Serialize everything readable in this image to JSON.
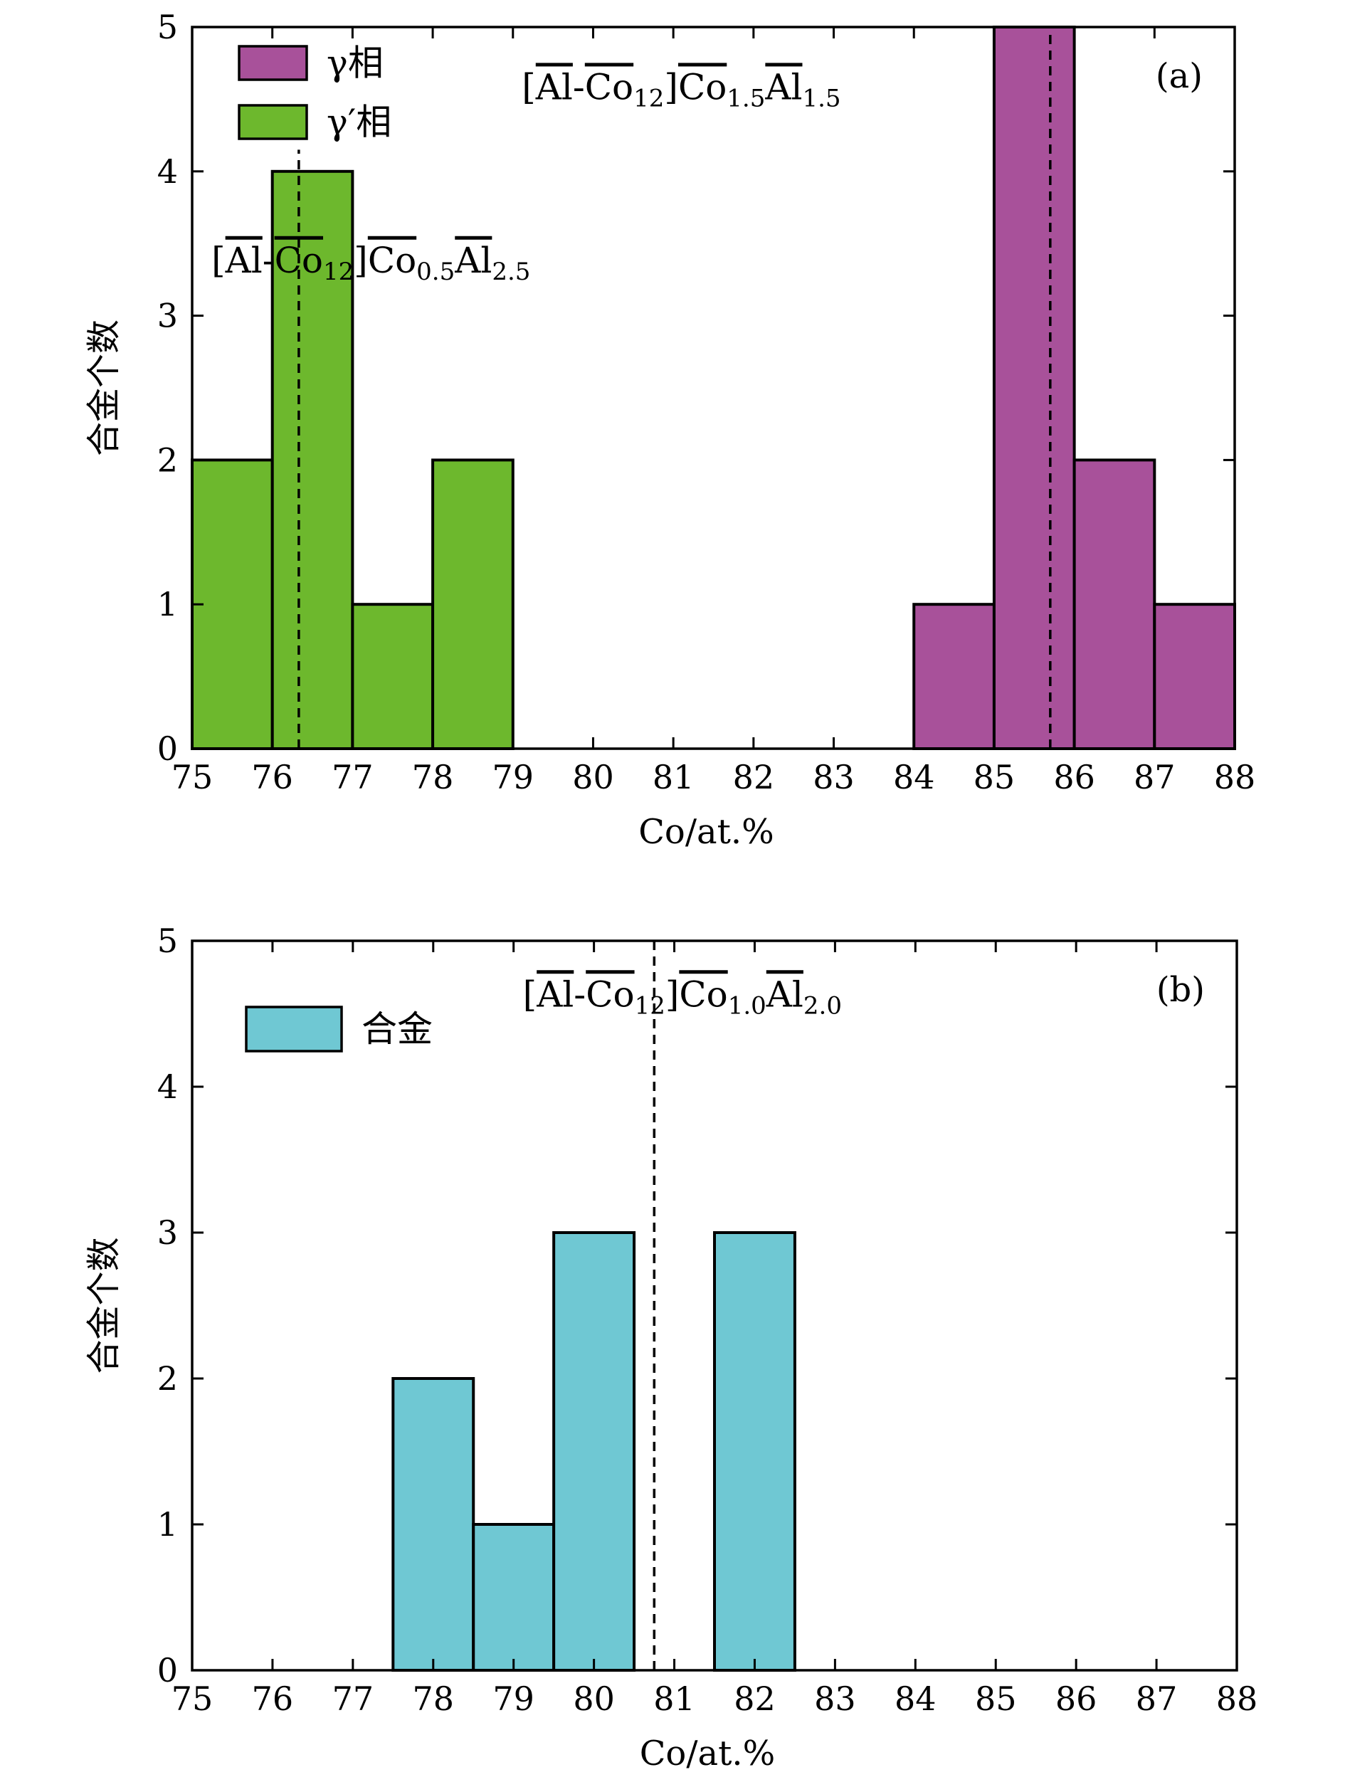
{
  "chart_data": [
    {
      "panel": "a",
      "type": "bar",
      "subtype": "histogram",
      "panel_label": "(a)",
      "xlabel": "Co/at.%",
      "ylabel": "合金个数",
      "xlim": [
        75,
        88
      ],
      "ylim": [
        0,
        5
      ],
      "xticks": [
        75,
        76,
        77,
        78,
        79,
        80,
        81,
        82,
        83,
        84,
        85,
        86,
        87,
        88
      ],
      "yticks": [
        0,
        1,
        2,
        3,
        4,
        5
      ],
      "legend_position": "top-left",
      "series": [
        {
          "name": "γ相",
          "color": "#A8519A",
          "bins": [
            {
              "x0": 84,
              "x1": 85,
              "count": 1
            },
            {
              "x0": 85,
              "x1": 86,
              "count": 5
            },
            {
              "x0": 86,
              "x1": 87,
              "count": 2
            },
            {
              "x0": 87,
              "x1": 88,
              "count": 1
            }
          ]
        },
        {
          "name": "γ′相",
          "color": "#6DB82D",
          "bins": [
            {
              "x0": 75,
              "x1": 76,
              "count": 2
            },
            {
              "x0": 76,
              "x1": 77,
              "count": 4
            },
            {
              "x0": 77,
              "x1": 78,
              "count": 1
            },
            {
              "x0": 78,
              "x1": 79,
              "count": 2
            }
          ]
        }
      ],
      "reference_lines": [
        {
          "x": 76.33,
          "style": "dashed",
          "top": 4.15
        },
        {
          "x": 85.7,
          "style": "dashed",
          "top": 5
        }
      ],
      "annotations": [
        {
          "anchor_x": 81.1,
          "anchor_y": 4.5,
          "parts": [
            {
              "t": "[",
              "s": "n"
            },
            {
              "t": "Al",
              "s": "o"
            },
            {
              "t": "-",
              "s": "n"
            },
            {
              "t": "Co",
              "s": "o"
            },
            {
              "t": "12",
              "s": "sub"
            },
            {
              "t": "]",
              "s": "n"
            },
            {
              "t": "Co",
              "s": "o"
            },
            {
              "t": "1.5",
              "s": "sub"
            },
            {
              "t": "Al",
              "s": "o"
            },
            {
              "t": "1.5",
              "s": "sub"
            }
          ]
        },
        {
          "anchor_x": 77.23,
          "anchor_y": 3.3,
          "parts": [
            {
              "t": "[",
              "s": "n"
            },
            {
              "t": "Al",
              "s": "o"
            },
            {
              "t": "-",
              "s": "n"
            },
            {
              "t": "Co",
              "s": "o"
            },
            {
              "t": "12",
              "s": "sub"
            },
            {
              "t": "]",
              "s": "n"
            },
            {
              "t": "Co",
              "s": "o"
            },
            {
              "t": "0.5",
              "s": "sub"
            },
            {
              "t": "Al",
              "s": "o"
            },
            {
              "t": "2.5",
              "s": "sub"
            }
          ]
        }
      ]
    },
    {
      "panel": "b",
      "type": "bar",
      "subtype": "histogram",
      "panel_label": "(b)",
      "xlabel": "Co/at.%",
      "ylabel": "合金个数",
      "xlim": [
        75,
        88
      ],
      "ylim": [
        0,
        5
      ],
      "xticks": [
        75,
        76,
        77,
        78,
        79,
        80,
        81,
        82,
        83,
        84,
        85,
        86,
        87,
        88
      ],
      "yticks": [
        0,
        1,
        2,
        3,
        4,
        5
      ],
      "legend_position": "top-left",
      "series": [
        {
          "name": "合金",
          "color": "#6FC8D3",
          "bins": [
            {
              "x0": 77.5,
              "x1": 78.5,
              "count": 2
            },
            {
              "x0": 78.5,
              "x1": 79.5,
              "count": 1
            },
            {
              "x0": 79.5,
              "x1": 80.5,
              "count": 3
            },
            {
              "x0": 81.5,
              "x1": 82.5,
              "count": 3
            }
          ]
        }
      ],
      "reference_lines": [
        {
          "x": 80.75,
          "style": "dashed",
          "top": 5
        }
      ],
      "annotations": [
        {
          "anchor_x": 81.1,
          "anchor_y": 4.55,
          "parts": [
            {
              "t": "[",
              "s": "n"
            },
            {
              "t": "Al",
              "s": "o"
            },
            {
              "t": "-",
              "s": "n"
            },
            {
              "t": "Co",
              "s": "o"
            },
            {
              "t": "12",
              "s": "sub"
            },
            {
              "t": "]",
              "s": "n"
            },
            {
              "t": "Co",
              "s": "o"
            },
            {
              "t": "1.0",
              "s": "sub"
            },
            {
              "t": "Al",
              "s": "o"
            },
            {
              "t": "2.0",
              "s": "sub"
            }
          ]
        }
      ]
    }
  ]
}
